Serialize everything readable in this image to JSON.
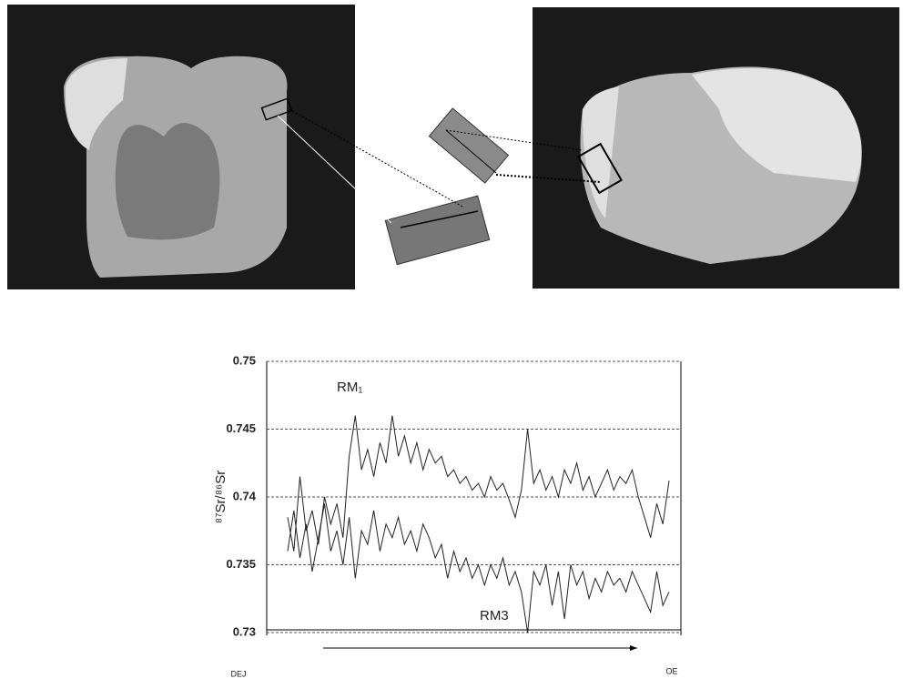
{
  "chart_data": {
    "type": "line",
    "y_label": "⁸⁷Sr/⁸⁶Sr",
    "x_start_label": "DEJ",
    "x_end_label": "OE",
    "ylim": [
      0.73,
      0.75
    ],
    "yticks": [
      0.75,
      0.745,
      0.74,
      0.735,
      0.73
    ],
    "grid": true,
    "series": [
      {
        "name": "RM₁",
        "color": "#222222",
        "values": [
          0.7385,
          0.736,
          0.7415,
          0.7375,
          0.739,
          0.7365,
          0.74,
          0.738,
          0.7395,
          0.737,
          0.743,
          0.746,
          0.742,
          0.7435,
          0.7415,
          0.744,
          0.7425,
          0.746,
          0.743,
          0.7445,
          0.7425,
          0.744,
          0.742,
          0.7435,
          0.7425,
          0.743,
          0.7415,
          0.742,
          0.741,
          0.7415,
          0.7405,
          0.741,
          0.74,
          0.7415,
          0.7405,
          0.741,
          0.7398,
          0.7385,
          0.7405,
          0.745,
          0.741,
          0.742,
          0.7405,
          0.7415,
          0.74,
          0.742,
          0.741,
          0.7425,
          0.7405,
          0.7415,
          0.74,
          0.741,
          0.742,
          0.7405,
          0.7415,
          0.741,
          0.742,
          0.74,
          0.7385,
          0.737,
          0.7395,
          0.738,
          0.7412
        ]
      },
      {
        "name": "RM3",
        "color": "#222222",
        "values": [
          0.736,
          0.739,
          0.7355,
          0.738,
          0.7345,
          0.737,
          0.7395,
          0.736,
          0.7375,
          0.735,
          0.7385,
          0.734,
          0.7375,
          0.7365,
          0.739,
          0.736,
          0.738,
          0.737,
          0.7385,
          0.7365,
          0.7375,
          0.736,
          0.738,
          0.737,
          0.7355,
          0.7365,
          0.734,
          0.736,
          0.7345,
          0.7355,
          0.734,
          0.735,
          0.7335,
          0.735,
          0.734,
          0.7355,
          0.7335,
          0.7345,
          0.733,
          0.73,
          0.7345,
          0.7335,
          0.735,
          0.732,
          0.7345,
          0.731,
          0.735,
          0.7335,
          0.7345,
          0.7325,
          0.734,
          0.733,
          0.7345,
          0.7335,
          0.734,
          0.733,
          0.7345,
          0.7335,
          0.7325,
          0.7315,
          0.7345,
          0.732,
          0.733
        ]
      }
    ]
  }
}
